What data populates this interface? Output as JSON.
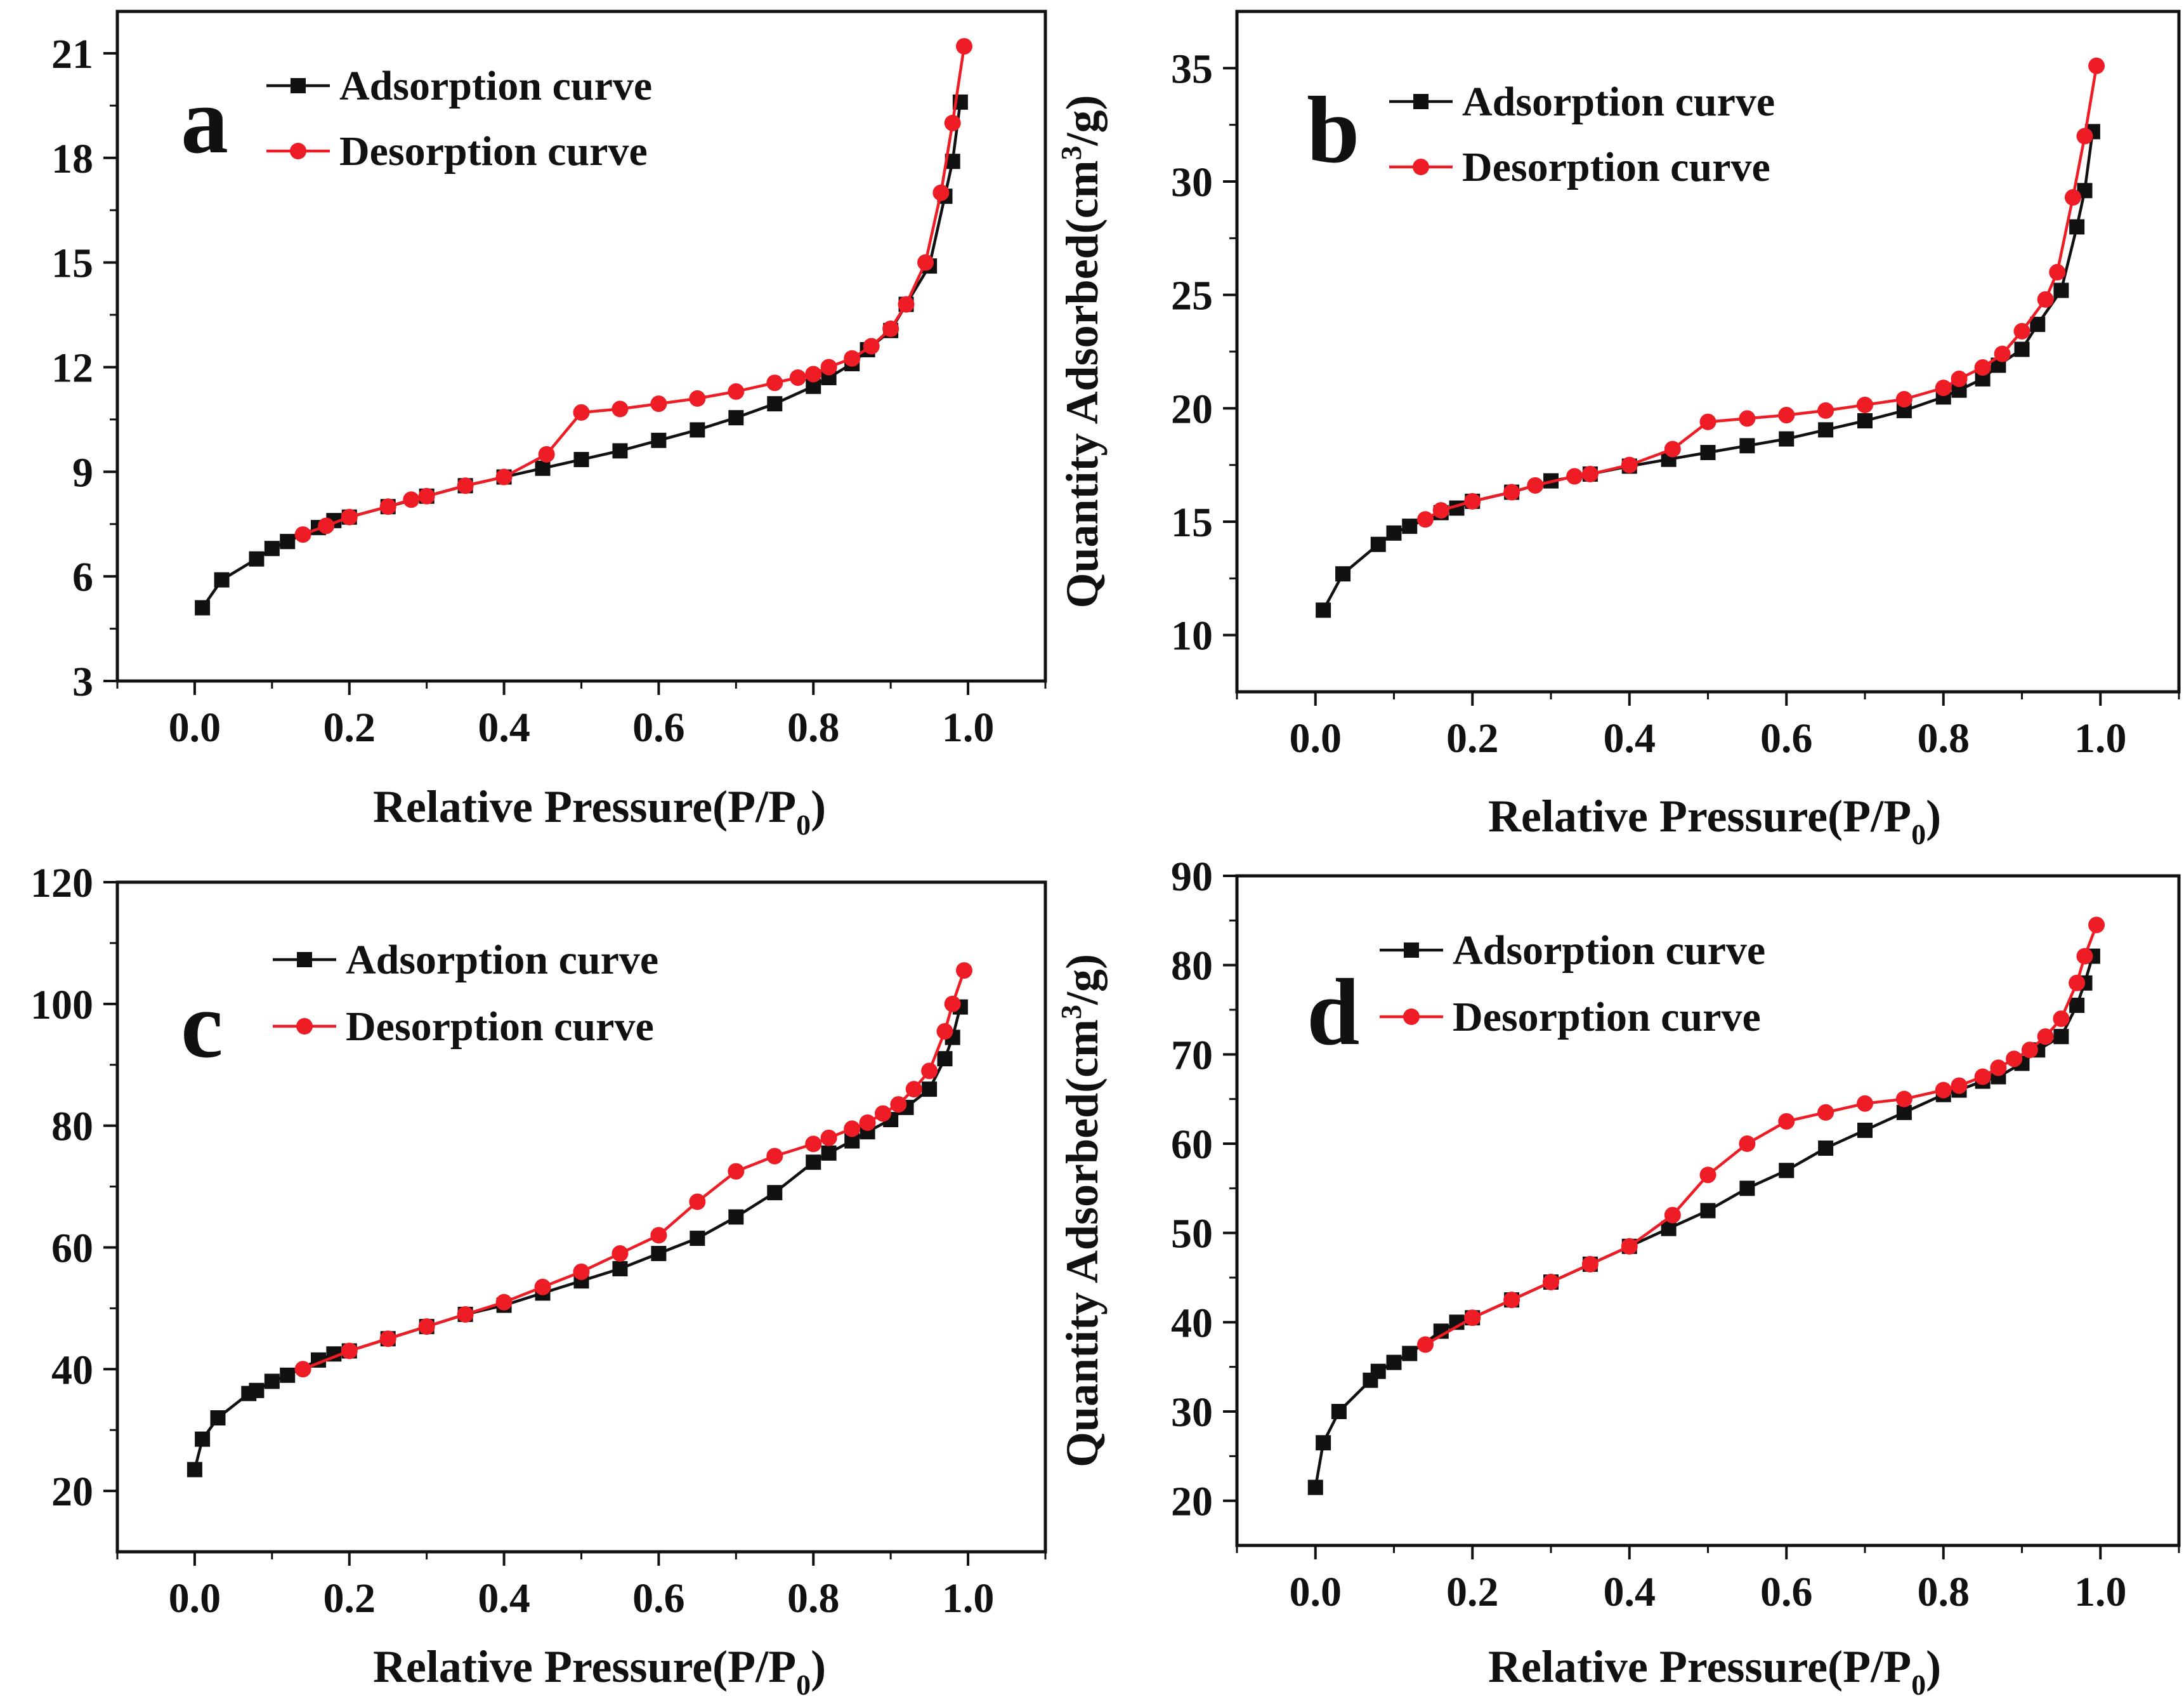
{
  "figure": {
    "colors": {
      "adsorption": "#111111",
      "desorption": "#ee1c24",
      "axis": "#111111",
      "background": "#ffffff"
    },
    "legend": {
      "adsorption_label": "Adsorption curve",
      "desorption_label": "Desorption curve"
    }
  },
  "chart_data": [
    {
      "type": "line",
      "panel": "a",
      "letter": "a",
      "xlabel": "Relative Pressure(P/P0)",
      "xlabel_main": "Relative Pressure(P/P",
      "xlabel_sub": "0",
      "xlabel_tail": ")",
      "ylabel": "",
      "xlim": [
        -0.1,
        1.1
      ],
      "ylim": [
        3,
        22.2
      ],
      "xticks": [
        0.0,
        0.2,
        0.4,
        0.6,
        0.8,
        1.0
      ],
      "xtick_labels": [
        "0.0",
        "0.2",
        "0.4",
        "0.6",
        "0.8",
        "1.0"
      ],
      "yticks": [
        3,
        6,
        9,
        12,
        15,
        18,
        21
      ],
      "ytick_labels": [
        "3",
        "6",
        "9",
        "12",
        "15",
        "18",
        "21"
      ],
      "legend_position": "top",
      "series": [
        {
          "name": "Adsorption curve",
          "color": "#111111",
          "marker": "square",
          "x": [
            0.01,
            0.035,
            0.08,
            0.1,
            0.12,
            0.16,
            0.18,
            0.2,
            0.25,
            0.3,
            0.35,
            0.4,
            0.45,
            0.5,
            0.55,
            0.6,
            0.65,
            0.7,
            0.75,
            0.8,
            0.82,
            0.85,
            0.87,
            0.9,
            0.92,
            0.95,
            0.97,
            0.98,
            0.99
          ],
          "y": [
            5.1,
            5.9,
            6.5,
            6.8,
            7.0,
            7.4,
            7.6,
            7.7,
            8.0,
            8.3,
            8.6,
            8.85,
            9.1,
            9.35,
            9.6,
            9.9,
            10.2,
            10.55,
            10.95,
            11.45,
            11.7,
            12.1,
            12.5,
            13.05,
            13.8,
            14.9,
            16.9,
            17.9,
            19.6
          ]
        },
        {
          "name": "Desorption curve",
          "color": "#ee1c24",
          "marker": "circle",
          "x": [
            0.995,
            0.98,
            0.965,
            0.945,
            0.92,
            0.9,
            0.875,
            0.85,
            0.82,
            0.8,
            0.78,
            0.75,
            0.7,
            0.65,
            0.6,
            0.55,
            0.5,
            0.455,
            0.4,
            0.35,
            0.3,
            0.28,
            0.25,
            0.2,
            0.17,
            0.14
          ],
          "y": [
            21.2,
            19.0,
            17.0,
            15.0,
            13.8,
            13.1,
            12.6,
            12.25,
            12.0,
            11.8,
            11.7,
            11.55,
            11.3,
            11.1,
            10.95,
            10.8,
            10.7,
            9.5,
            8.85,
            8.6,
            8.3,
            8.2,
            8.0,
            7.7,
            7.45,
            7.2
          ]
        }
      ]
    },
    {
      "type": "line",
      "panel": "b",
      "letter": "b",
      "xlabel": "Relative Pressure(P/P0)",
      "xlabel_main": "Relative Pressure(P/P",
      "xlabel_sub": "0",
      "xlabel_tail": ")",
      "ylabel": "Quantity Adsorbed(cm3/g)",
      "ylabel_main": "Quantity Adsorbed(cm",
      "ylabel_sup": "3",
      "ylabel_tail": "/g)",
      "xlim": [
        -0.1,
        1.1
      ],
      "ylim": [
        7.5,
        37.5
      ],
      "xticks": [
        0.0,
        0.2,
        0.4,
        0.6,
        0.8,
        1.0
      ],
      "xtick_labels": [
        "0.0",
        "0.2",
        "0.4",
        "0.6",
        "0.8",
        "1.0"
      ],
      "yticks": [
        10,
        15,
        20,
        25,
        30,
        35
      ],
      "ytick_labels": [
        "10",
        "15",
        "20",
        "25",
        "30",
        "35"
      ],
      "legend_position": "top",
      "series": [
        {
          "name": "Adsorption curve",
          "color": "#111111",
          "marker": "square",
          "x": [
            0.01,
            0.035,
            0.08,
            0.1,
            0.12,
            0.16,
            0.18,
            0.2,
            0.25,
            0.3,
            0.35,
            0.4,
            0.45,
            0.5,
            0.55,
            0.6,
            0.65,
            0.7,
            0.75,
            0.8,
            0.82,
            0.85,
            0.87,
            0.9,
            0.92,
            0.95,
            0.97,
            0.98,
            0.99
          ],
          "y": [
            11.1,
            12.7,
            14.0,
            14.5,
            14.8,
            15.4,
            15.6,
            15.9,
            16.3,
            16.8,
            17.1,
            17.45,
            17.75,
            18.05,
            18.35,
            18.65,
            19.05,
            19.45,
            19.9,
            20.5,
            20.8,
            21.3,
            21.9,
            22.6,
            23.7,
            25.2,
            28.0,
            29.6,
            32.2
          ]
        },
        {
          "name": "Desorption curve",
          "color": "#ee1c24",
          "marker": "circle",
          "x": [
            0.995,
            0.98,
            0.965,
            0.945,
            0.93,
            0.9,
            0.875,
            0.85,
            0.82,
            0.8,
            0.75,
            0.7,
            0.65,
            0.6,
            0.55,
            0.5,
            0.455,
            0.4,
            0.35,
            0.33,
            0.28,
            0.25,
            0.2,
            0.16,
            0.14
          ],
          "y": [
            35.1,
            32.0,
            29.3,
            26.0,
            24.8,
            23.4,
            22.4,
            21.8,
            21.3,
            20.9,
            20.4,
            20.15,
            19.9,
            19.7,
            19.55,
            19.4,
            18.2,
            17.5,
            17.1,
            17.0,
            16.6,
            16.3,
            15.9,
            15.5,
            15.1
          ]
        }
      ]
    },
    {
      "type": "line",
      "panel": "c",
      "letter": "c",
      "xlabel": "Relative Pressure(P/P0)",
      "xlabel_main": "Relative Pressure(P/P",
      "xlabel_sub": "0",
      "xlabel_tail": ")",
      "ylabel": "",
      "xlim": [
        -0.1,
        1.1
      ],
      "ylim": [
        10,
        120
      ],
      "xticks": [
        0.0,
        0.2,
        0.4,
        0.6,
        0.8,
        1.0
      ],
      "xtick_labels": [
        "0.0",
        "0.2",
        "0.4",
        "0.6",
        "0.8",
        "1.0"
      ],
      "yticks": [
        20,
        40,
        60,
        80,
        100,
        120
      ],
      "ytick_labels": [
        "20",
        "40",
        "60",
        "80",
        "100",
        "120"
      ],
      "legend_position": "top",
      "series": [
        {
          "name": "Adsorption curve",
          "color": "#111111",
          "marker": "square",
          "x": [
            0.0,
            0.01,
            0.03,
            0.07,
            0.08,
            0.1,
            0.12,
            0.16,
            0.18,
            0.2,
            0.25,
            0.3,
            0.35,
            0.4,
            0.45,
            0.5,
            0.55,
            0.6,
            0.65,
            0.7,
            0.75,
            0.8,
            0.82,
            0.85,
            0.87,
            0.9,
            0.92,
            0.95,
            0.97,
            0.98,
            0.99
          ],
          "y": [
            23.5,
            28.5,
            32.0,
            36.0,
            36.5,
            38.0,
            39.0,
            41.5,
            42.5,
            43.0,
            45.0,
            47.0,
            49.0,
            50.5,
            52.5,
            54.5,
            56.5,
            59.0,
            61.5,
            65.0,
            69.0,
            74.0,
            75.5,
            77.5,
            79.0,
            81.0,
            83.0,
            86.0,
            91.0,
            94.5,
            99.5
          ]
        },
        {
          "name": "Desorption curve",
          "color": "#ee1c24",
          "marker": "circle",
          "x": [
            0.995,
            0.98,
            0.97,
            0.95,
            0.93,
            0.91,
            0.89,
            0.87,
            0.85,
            0.82,
            0.8,
            0.75,
            0.7,
            0.65,
            0.6,
            0.55,
            0.5,
            0.45,
            0.4,
            0.35,
            0.3,
            0.25,
            0.2,
            0.14
          ],
          "y": [
            105.5,
            100.0,
            95.5,
            89.0,
            86.0,
            83.5,
            82.0,
            80.5,
            79.5,
            78.0,
            77.0,
            75.0,
            72.5,
            67.5,
            62.0,
            59.0,
            56.0,
            53.5,
            51.0,
            49.0,
            47.0,
            45.0,
            43.0,
            40.0
          ]
        }
      ]
    },
    {
      "type": "line",
      "panel": "d",
      "letter": "d",
      "xlabel": "Relative Pressure(P/P0)",
      "xlabel_main": "Relative Pressure(P/P",
      "xlabel_sub": "0",
      "xlabel_tail": ")",
      "ylabel": "Quantity Adsorbed(cm3/g)",
      "ylabel_main": "Quantity Adsorbed(cm",
      "ylabel_sup": "3",
      "ylabel_tail": "/g)",
      "xlim": [
        -0.1,
        1.1
      ],
      "ylim": [
        15,
        90
      ],
      "xticks": [
        0.0,
        0.2,
        0.4,
        0.6,
        0.8,
        1.0
      ],
      "xtick_labels": [
        "0.0",
        "0.2",
        "0.4",
        "0.6",
        "0.8",
        "1.0"
      ],
      "yticks": [
        20,
        30,
        40,
        50,
        60,
        70,
        80,
        90
      ],
      "ytick_labels": [
        "20",
        "30",
        "40",
        "50",
        "60",
        "70",
        "80",
        "90"
      ],
      "legend_position": "top",
      "series": [
        {
          "name": "Adsorption curve",
          "color": "#111111",
          "marker": "square",
          "x": [
            0.0,
            0.01,
            0.03,
            0.07,
            0.08,
            0.1,
            0.12,
            0.16,
            0.18,
            0.2,
            0.25,
            0.3,
            0.35,
            0.4,
            0.45,
            0.5,
            0.55,
            0.6,
            0.65,
            0.7,
            0.75,
            0.8,
            0.82,
            0.85,
            0.87,
            0.9,
            0.92,
            0.95,
            0.97,
            0.98,
            0.99
          ],
          "y": [
            21.5,
            26.5,
            30.0,
            33.5,
            34.5,
            35.5,
            36.5,
            39.0,
            40.0,
            40.5,
            42.5,
            44.5,
            46.5,
            48.5,
            50.5,
            52.5,
            55.0,
            57.0,
            59.5,
            61.5,
            63.5,
            65.5,
            66.0,
            67.0,
            67.5,
            69.0,
            70.5,
            72.0,
            75.5,
            78.0,
            81.0
          ]
        },
        {
          "name": "Desorption curve",
          "color": "#ee1c24",
          "marker": "circle",
          "x": [
            0.995,
            0.98,
            0.97,
            0.95,
            0.93,
            0.91,
            0.89,
            0.87,
            0.85,
            0.82,
            0.8,
            0.75,
            0.7,
            0.65,
            0.6,
            0.55,
            0.5,
            0.455,
            0.4,
            0.35,
            0.3,
            0.25,
            0.2,
            0.14
          ],
          "y": [
            84.5,
            81.0,
            78.0,
            74.0,
            72.0,
            70.5,
            69.5,
            68.5,
            67.5,
            66.5,
            66.0,
            65.0,
            64.5,
            63.5,
            62.5,
            60.0,
            56.5,
            52.0,
            48.5,
            46.5,
            44.5,
            42.5,
            40.5,
            37.5
          ]
        }
      ]
    }
  ]
}
